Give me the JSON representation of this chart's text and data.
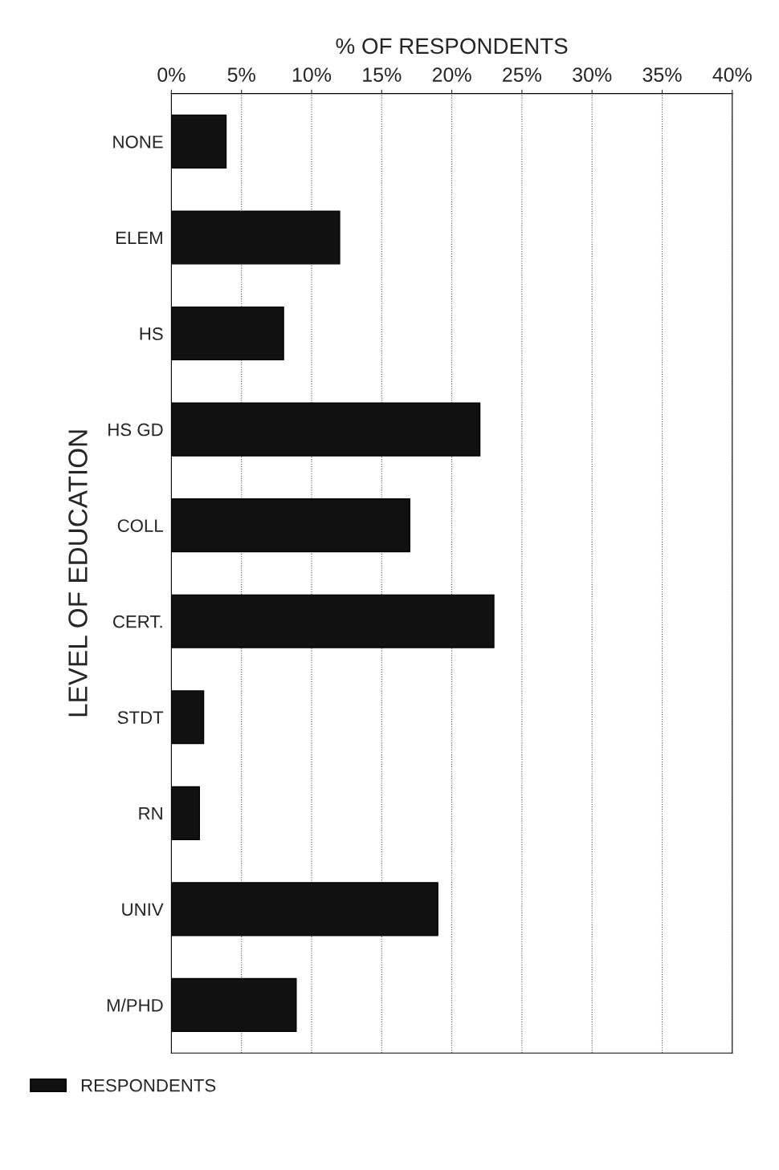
{
  "chart_data": {
    "type": "bar",
    "orientation": "horizontal",
    "xlabel": "% OF RESPONDENTS",
    "ylabel": "LEVEL OF EDUCATION",
    "categories": [
      "NONE",
      "ELEM",
      "HS",
      "HS GD",
      "COLL",
      "CERT.",
      "STDT",
      "RN",
      "UNIV",
      "M/PHD"
    ],
    "series": [
      {
        "name": "RESPONDENTS",
        "color": "#111111",
        "values": [
          3.9,
          12,
          8,
          22,
          17,
          23,
          2.3,
          2,
          19,
          8.9
        ]
      }
    ],
    "xlim": [
      0,
      40
    ],
    "xticks": [
      {
        "value": 0,
        "label": "0%"
      },
      {
        "value": 5,
        "label": "5%"
      },
      {
        "value": 10,
        "label": "10%"
      },
      {
        "value": 15,
        "label": "15%"
      },
      {
        "value": 20,
        "label": "20%"
      },
      {
        "value": 25,
        "label": "25%"
      },
      {
        "value": 30,
        "label": "30%"
      },
      {
        "value": 35,
        "label": "35%"
      },
      {
        "value": 40,
        "label": "40%"
      }
    ],
    "grid": "x",
    "legend": "bottom left"
  }
}
